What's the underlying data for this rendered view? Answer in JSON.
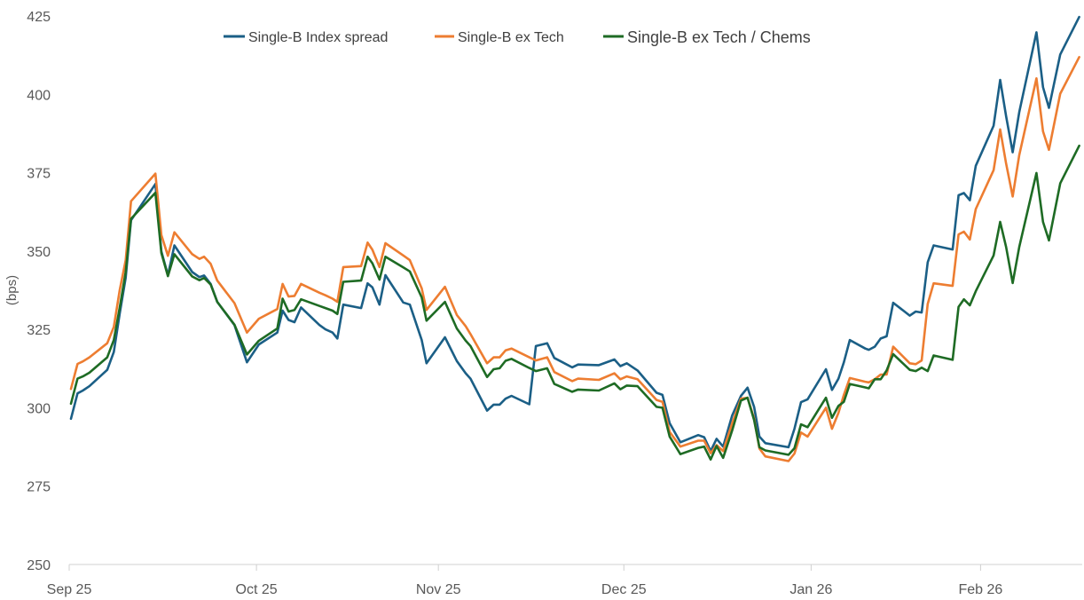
{
  "chart_data": {
    "type": "line",
    "title": "",
    "xlabel": "",
    "ylabel": "(bps)",
    "x_unit": "days since start of axis (approx.)",
    "ylim": [
      250,
      425
    ],
    "xlim": [
      0,
      170.4
    ],
    "grid": false,
    "legend_position": "top-center",
    "y_ticks": [
      250,
      275,
      300,
      325,
      350,
      375,
      400,
      425
    ],
    "x_ticks": [
      {
        "label": "Sep 25",
        "x": 0
      },
      {
        "label": "Oct 25",
        "x": 31.5
      },
      {
        "label": "Nov 25",
        "x": 62.1
      },
      {
        "label": "Dec 25",
        "x": 93.3
      },
      {
        "label": "Jan 26",
        "x": 124.8
      },
      {
        "label": "Feb 26",
        "x": 153.3
      }
    ],
    "x": [
      0.3,
      1.4,
      2.3,
      3.4,
      6.4,
      7.5,
      8.5,
      9.5,
      10.4,
      14.5,
      15.5,
      16.6,
      17.7,
      20.7,
      21.9,
      22.7,
      23.8,
      24.9,
      27.8,
      29.9,
      31.9,
      35.0,
      35.9,
      36.9,
      37.9,
      39.0,
      42.1,
      43.1,
      44.3,
      45.1,
      46.1,
      49.1,
      50.2,
      51.0,
      52.2,
      53.2,
      56.2,
      57.3,
      59.3,
      60.1,
      63.2,
      65.2,
      66.7,
      67.5,
      70.3,
      71.4,
      72.4,
      73.4,
      74.4,
      77.4,
      78.5,
      80.4,
      81.6,
      84.6,
      85.6,
      89.1,
      91.7,
      92.7,
      93.8,
      95.6,
      98.8,
      99.8,
      101.0,
      102.8,
      105.8,
      106.8,
      107.9,
      108.9,
      110.0,
      111.5,
      113.0,
      114.1,
      115.2,
      116.1,
      117.1,
      121.0,
      122.0,
      123.1,
      124.2,
      127.3,
      128.3,
      129.4,
      130.3,
      131.3,
      133.9,
      134.5,
      135.5,
      136.5,
      137.5,
      138.6,
      141.4,
      142.4,
      143.4,
      144.4,
      145.4,
      148.6,
      149.6,
      150.5,
      151.5,
      152.5,
      155.5,
      156.6,
      157.6,
      158.7,
      159.8,
      162.7,
      163.8,
      164.8,
      166.7,
      169.9
    ],
    "series": [
      {
        "name": "Single-B Index spread",
        "color": "#1b5f86",
        "values": [
          296.5,
          304.6,
          305.5,
          306.9,
          312.1,
          317.8,
          330.1,
          341.5,
          359.8,
          371.4,
          349.9,
          342.3,
          351.8,
          343.3,
          341.7,
          342.2,
          339.5,
          333.8,
          326.4,
          314.5,
          320.2,
          324.0,
          331.0,
          328.0,
          327.3,
          332.0,
          326.4,
          325.0,
          324.0,
          322.1,
          332.9,
          331.8,
          339.7,
          338.4,
          332.9,
          342.3,
          333.6,
          332.9,
          321.6,
          314.2,
          322.5,
          314.9,
          311.0,
          309.3,
          299.1,
          301.0,
          301.0,
          302.9,
          303.8,
          301.1,
          319.7,
          320.6,
          315.9,
          312.9,
          313.8,
          313.6,
          315.4,
          313.3,
          314.2,
          311.9,
          304.8,
          304.1,
          295.1,
          289.0,
          291.3,
          290.6,
          286.2,
          290.1,
          287.6,
          297.5,
          303.8,
          306.4,
          300.3,
          290.8,
          288.7,
          287.4,
          293.3,
          301.8,
          302.7,
          312.3,
          305.7,
          309.3,
          314.5,
          321.6,
          318.9,
          318.5,
          319.5,
          322.1,
          322.8,
          333.5,
          329.4,
          330.7,
          330.4,
          346.4,
          351.8,
          350.5,
          367.8,
          368.5,
          366.2,
          377.2,
          390.0,
          404.6,
          393.0,
          381.5,
          394.3,
          419.8,
          402.3,
          395.7,
          412.7,
          424.7
        ]
      },
      {
        "name": "Single-B ex Tech",
        "color": "#ed7d31",
        "values": [
          306.0,
          314.0,
          314.8,
          316.1,
          320.6,
          325.8,
          337.6,
          347.1,
          365.9,
          374.7,
          355.1,
          348.5,
          356.0,
          349.0,
          347.5,
          348.2,
          345.9,
          340.6,
          333.4,
          324.0,
          328.4,
          331.5,
          339.5,
          335.5,
          335.7,
          339.5,
          336.7,
          335.9,
          334.8,
          333.8,
          344.9,
          345.2,
          352.7,
          350.4,
          344.9,
          352.5,
          348.6,
          347.1,
          338.1,
          331.2,
          338.6,
          329.6,
          326.0,
          323.5,
          314.2,
          316.1,
          316.1,
          318.3,
          318.9,
          316.1,
          315.1,
          316.1,
          311.4,
          308.5,
          309.3,
          308.9,
          311.0,
          309.1,
          310.0,
          309.1,
          302.5,
          301.9,
          292.3,
          287.6,
          289.5,
          289.5,
          285.5,
          288.1,
          286.2,
          295.0,
          302.9,
          303.2,
          296.6,
          287.0,
          284.5,
          283.0,
          285.4,
          292.1,
          290.8,
          300.0,
          293.3,
          298.4,
          304.1,
          309.5,
          308.3,
          308.1,
          309.1,
          310.6,
          310.6,
          319.5,
          314.2,
          313.9,
          315.1,
          333.1,
          339.7,
          338.9,
          355.3,
          356.2,
          353.7,
          363.4,
          375.8,
          388.8,
          377.9,
          367.4,
          380.6,
          405.1,
          388.2,
          382.3,
          400.2,
          411.9
        ]
      },
      {
        "name": "Single-B ex Tech / Chems",
        "color": "#1e6b24",
        "values": [
          301.3,
          309.3,
          310.0,
          311.2,
          316.1,
          321.6,
          332.0,
          343.3,
          360.3,
          368.6,
          349.4,
          342.0,
          349.0,
          341.9,
          340.7,
          341.4,
          339.3,
          333.8,
          326.5,
          317.0,
          321.4,
          325.3,
          334.8,
          330.7,
          331.2,
          334.6,
          332.5,
          331.8,
          331.0,
          329.9,
          340.2,
          340.6,
          348.2,
          346.1,
          340.9,
          348.2,
          344.8,
          343.5,
          335.2,
          327.8,
          333.8,
          325.3,
          321.4,
          319.7,
          309.8,
          312.3,
          312.6,
          315.0,
          315.6,
          312.7,
          311.7,
          312.6,
          307.6,
          305.1,
          305.8,
          305.5,
          307.8,
          305.9,
          307.1,
          306.9,
          300.3,
          300.0,
          290.8,
          285.2,
          287.2,
          287.6,
          283.5,
          287.8,
          284.0,
          292.7,
          302.3,
          303.2,
          296.1,
          287.4,
          286.4,
          285.0,
          287.1,
          294.7,
          293.8,
          303.2,
          296.8,
          300.6,
          301.9,
          307.6,
          306.5,
          306.2,
          309.1,
          309.1,
          311.9,
          317.1,
          312.1,
          311.7,
          312.8,
          311.7,
          316.7,
          315.3,
          332.2,
          334.6,
          332.7,
          337.2,
          348.6,
          359.3,
          351.3,
          339.8,
          351.3,
          374.9,
          359.3,
          353.4,
          371.6,
          383.6
        ]
      }
    ]
  }
}
